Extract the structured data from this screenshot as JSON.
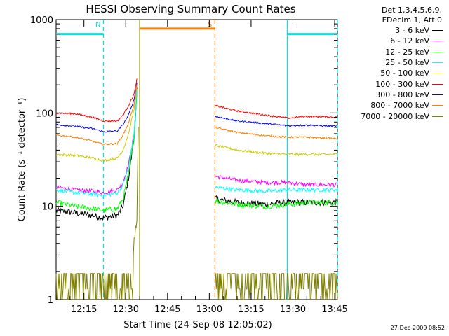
{
  "chart_data": {
    "type": "line",
    "title": "HESSI Observing Summary Count Rates",
    "xlabel": "Start Time (24-Sep-08 12:05:02)",
    "ylabel": "Count Rate (s⁻¹ detector⁻¹)",
    "yscale": "log",
    "ylim": [
      1,
      1000
    ],
    "xlim_minutes_after_12_00": [
      5,
      106
    ],
    "x_ticks": [
      {
        "t": 15,
        "label": "12:15"
      },
      {
        "t": 30,
        "label": "12:30"
      },
      {
        "t": 45,
        "label": "12:45"
      },
      {
        "t": 60,
        "label": "13:00"
      },
      {
        "t": 75,
        "label": "13:15"
      },
      {
        "t": 90,
        "label": "13:30"
      },
      {
        "t": 105,
        "label": "13:45"
      }
    ],
    "y_ticks": [
      {
        "v": 1,
        "label": "1"
      },
      {
        "v": 10,
        "label": "10"
      },
      {
        "v": 100,
        "label": "100"
      },
      {
        "v": 1000,
        "label": "1000"
      }
    ],
    "annotations": [
      {
        "type": "flag",
        "label": "N",
        "color": "#00e5e5",
        "t0": 5,
        "t1": 22,
        "level": 700
      },
      {
        "type": "flag",
        "label": "S",
        "color": "#ff8000",
        "t0": 35,
        "t1": 62,
        "level": 800
      },
      {
        "type": "flag",
        "label": "",
        "color": "#00e5e5",
        "t0": 88,
        "t1": 106,
        "level": 700
      }
    ],
    "vlines": [
      {
        "t": 22,
        "color": "#00e5e5",
        "style": "dashed"
      },
      {
        "t": 35,
        "color": "#808000",
        "style": "solid"
      },
      {
        "t": 62,
        "color": "#ff8000",
        "style": "dashed"
      },
      {
        "t": 88,
        "color": "#00e5e5",
        "style": "solid"
      },
      {
        "t": 106,
        "color": "#00e5e5",
        "style": "dashed"
      }
    ],
    "gaps": [
      [
        35,
        62
      ]
    ],
    "series": [
      {
        "name": "3 - 6 keV",
        "color": "#000000",
        "pts": [
          [
            5,
            9
          ],
          [
            12,
            8.5
          ],
          [
            18,
            8
          ],
          [
            22,
            7.5
          ],
          [
            27,
            8
          ],
          [
            29,
            10
          ],
          [
            31,
            20
          ],
          [
            33,
            55
          ],
          [
            34,
            180
          ]
        ],
        "pts2": [
          [
            62,
            12
          ],
          [
            70,
            11
          ],
          [
            80,
            10.5
          ],
          [
            88,
            11
          ],
          [
            95,
            11
          ],
          [
            106,
            11
          ]
        ],
        "jitter": 0.08
      },
      {
        "name": "6 - 12 keV",
        "color": "#ff00ff",
        "pts": [
          [
            5,
            16
          ],
          [
            12,
            15
          ],
          [
            18,
            14.5
          ],
          [
            22,
            14
          ],
          [
            27,
            15
          ],
          [
            29,
            18
          ],
          [
            31,
            28
          ],
          [
            33,
            60
          ],
          [
            34,
            170
          ]
        ],
        "pts2": [
          [
            62,
            21
          ],
          [
            70,
            19
          ],
          [
            80,
            18
          ],
          [
            88,
            18
          ],
          [
            95,
            17
          ],
          [
            106,
            17
          ]
        ],
        "jitter": 0.05
      },
      {
        "name": "12 - 25 keV",
        "color": "#00ff00",
        "pts": [
          [
            5,
            11
          ],
          [
            12,
            10
          ],
          [
            18,
            9.5
          ],
          [
            22,
            9
          ],
          [
            27,
            9.5
          ],
          [
            29,
            12
          ],
          [
            31,
            22
          ],
          [
            33,
            55
          ],
          [
            34,
            170
          ]
        ],
        "pts2": [
          [
            62,
            11.5
          ],
          [
            70,
            10.5
          ],
          [
            80,
            10
          ],
          [
            88,
            10.5
          ],
          [
            95,
            11
          ],
          [
            106,
            11
          ]
        ],
        "jitter": 0.07
      },
      {
        "name": "25 - 50 keV",
        "color": "#00ffff",
        "pts": [
          [
            5,
            15
          ],
          [
            12,
            14
          ],
          [
            18,
            13.5
          ],
          [
            22,
            13
          ],
          [
            27,
            14
          ],
          [
            29,
            17
          ],
          [
            31,
            26
          ],
          [
            33,
            60
          ],
          [
            34,
            180
          ]
        ],
        "pts2": [
          [
            62,
            16
          ],
          [
            70,
            15
          ],
          [
            80,
            14.5
          ],
          [
            88,
            15
          ],
          [
            95,
            15
          ],
          [
            106,
            15
          ]
        ],
        "jitter": 0.05
      },
      {
        "name": "50 - 100 keV",
        "color": "#cccc00",
        "pts": [
          [
            5,
            36
          ],
          [
            12,
            35
          ],
          [
            18,
            33
          ],
          [
            22,
            31
          ],
          [
            27,
            33
          ],
          [
            29,
            40
          ],
          [
            31,
            60
          ],
          [
            33,
            110
          ],
          [
            34,
            200
          ]
        ],
        "pts2": [
          [
            62,
            45
          ],
          [
            70,
            40
          ],
          [
            80,
            37
          ],
          [
            88,
            36
          ],
          [
            95,
            36
          ],
          [
            106,
            36
          ]
        ],
        "jitter": 0.03
      },
      {
        "name": "100 - 300 keV",
        "color": "#ff0000",
        "pts": [
          [
            5,
            100
          ],
          [
            12,
            98
          ],
          [
            18,
            90
          ],
          [
            22,
            82
          ],
          [
            27,
            82
          ],
          [
            29,
            95
          ],
          [
            31,
            120
          ],
          [
            33,
            160
          ],
          [
            34,
            230
          ]
        ],
        "pts2": [
          [
            62,
            120
          ],
          [
            70,
            105
          ],
          [
            80,
            95
          ],
          [
            88,
            88
          ],
          [
            95,
            92
          ],
          [
            106,
            90
          ]
        ],
        "jitter": 0.02
      },
      {
        "name": "300 - 800 keV",
        "color": "#0000ff",
        "pts": [
          [
            5,
            75
          ],
          [
            12,
            72
          ],
          [
            18,
            68
          ],
          [
            22,
            63
          ],
          [
            27,
            64
          ],
          [
            29,
            75
          ],
          [
            31,
            95
          ],
          [
            33,
            140
          ],
          [
            34,
            210
          ]
        ],
        "pts2": [
          [
            62,
            92
          ],
          [
            70,
            82
          ],
          [
            80,
            77
          ],
          [
            88,
            73
          ],
          [
            95,
            74
          ],
          [
            106,
            72
          ]
        ],
        "jitter": 0.02
      },
      {
        "name": "800 - 7000 keV",
        "color": "#ff8000",
        "pts": [
          [
            5,
            58
          ],
          [
            12,
            55
          ],
          [
            18,
            50
          ],
          [
            22,
            46
          ],
          [
            27,
            47
          ],
          [
            29,
            58
          ],
          [
            31,
            78
          ],
          [
            33,
            125
          ],
          [
            34,
            200
          ]
        ],
        "pts2": [
          [
            62,
            70
          ],
          [
            70,
            62
          ],
          [
            80,
            57
          ],
          [
            88,
            55
          ],
          [
            95,
            55
          ],
          [
            106,
            53
          ]
        ],
        "jitter": 0.02
      },
      {
        "name": "7000 - 20000 keV",
        "color": "#808000",
        "pts": [
          [
            5,
            1.5
          ],
          [
            22,
            1.5
          ],
          [
            30,
            1.5
          ],
          [
            32,
            2
          ],
          [
            33,
            4
          ],
          [
            34,
            8
          ],
          [
            34.6,
            100
          ]
        ],
        "pts2": [
          [
            62,
            1.5
          ],
          [
            106,
            1.5
          ]
        ],
        "jitter": 0.15,
        "spiky": true
      }
    ]
  },
  "legend": {
    "header1": "Det 1,3,4,5,6,9,",
    "header2": "FDecim 1, Att 0"
  },
  "timestamp": "27-Dec-2009 08:52"
}
